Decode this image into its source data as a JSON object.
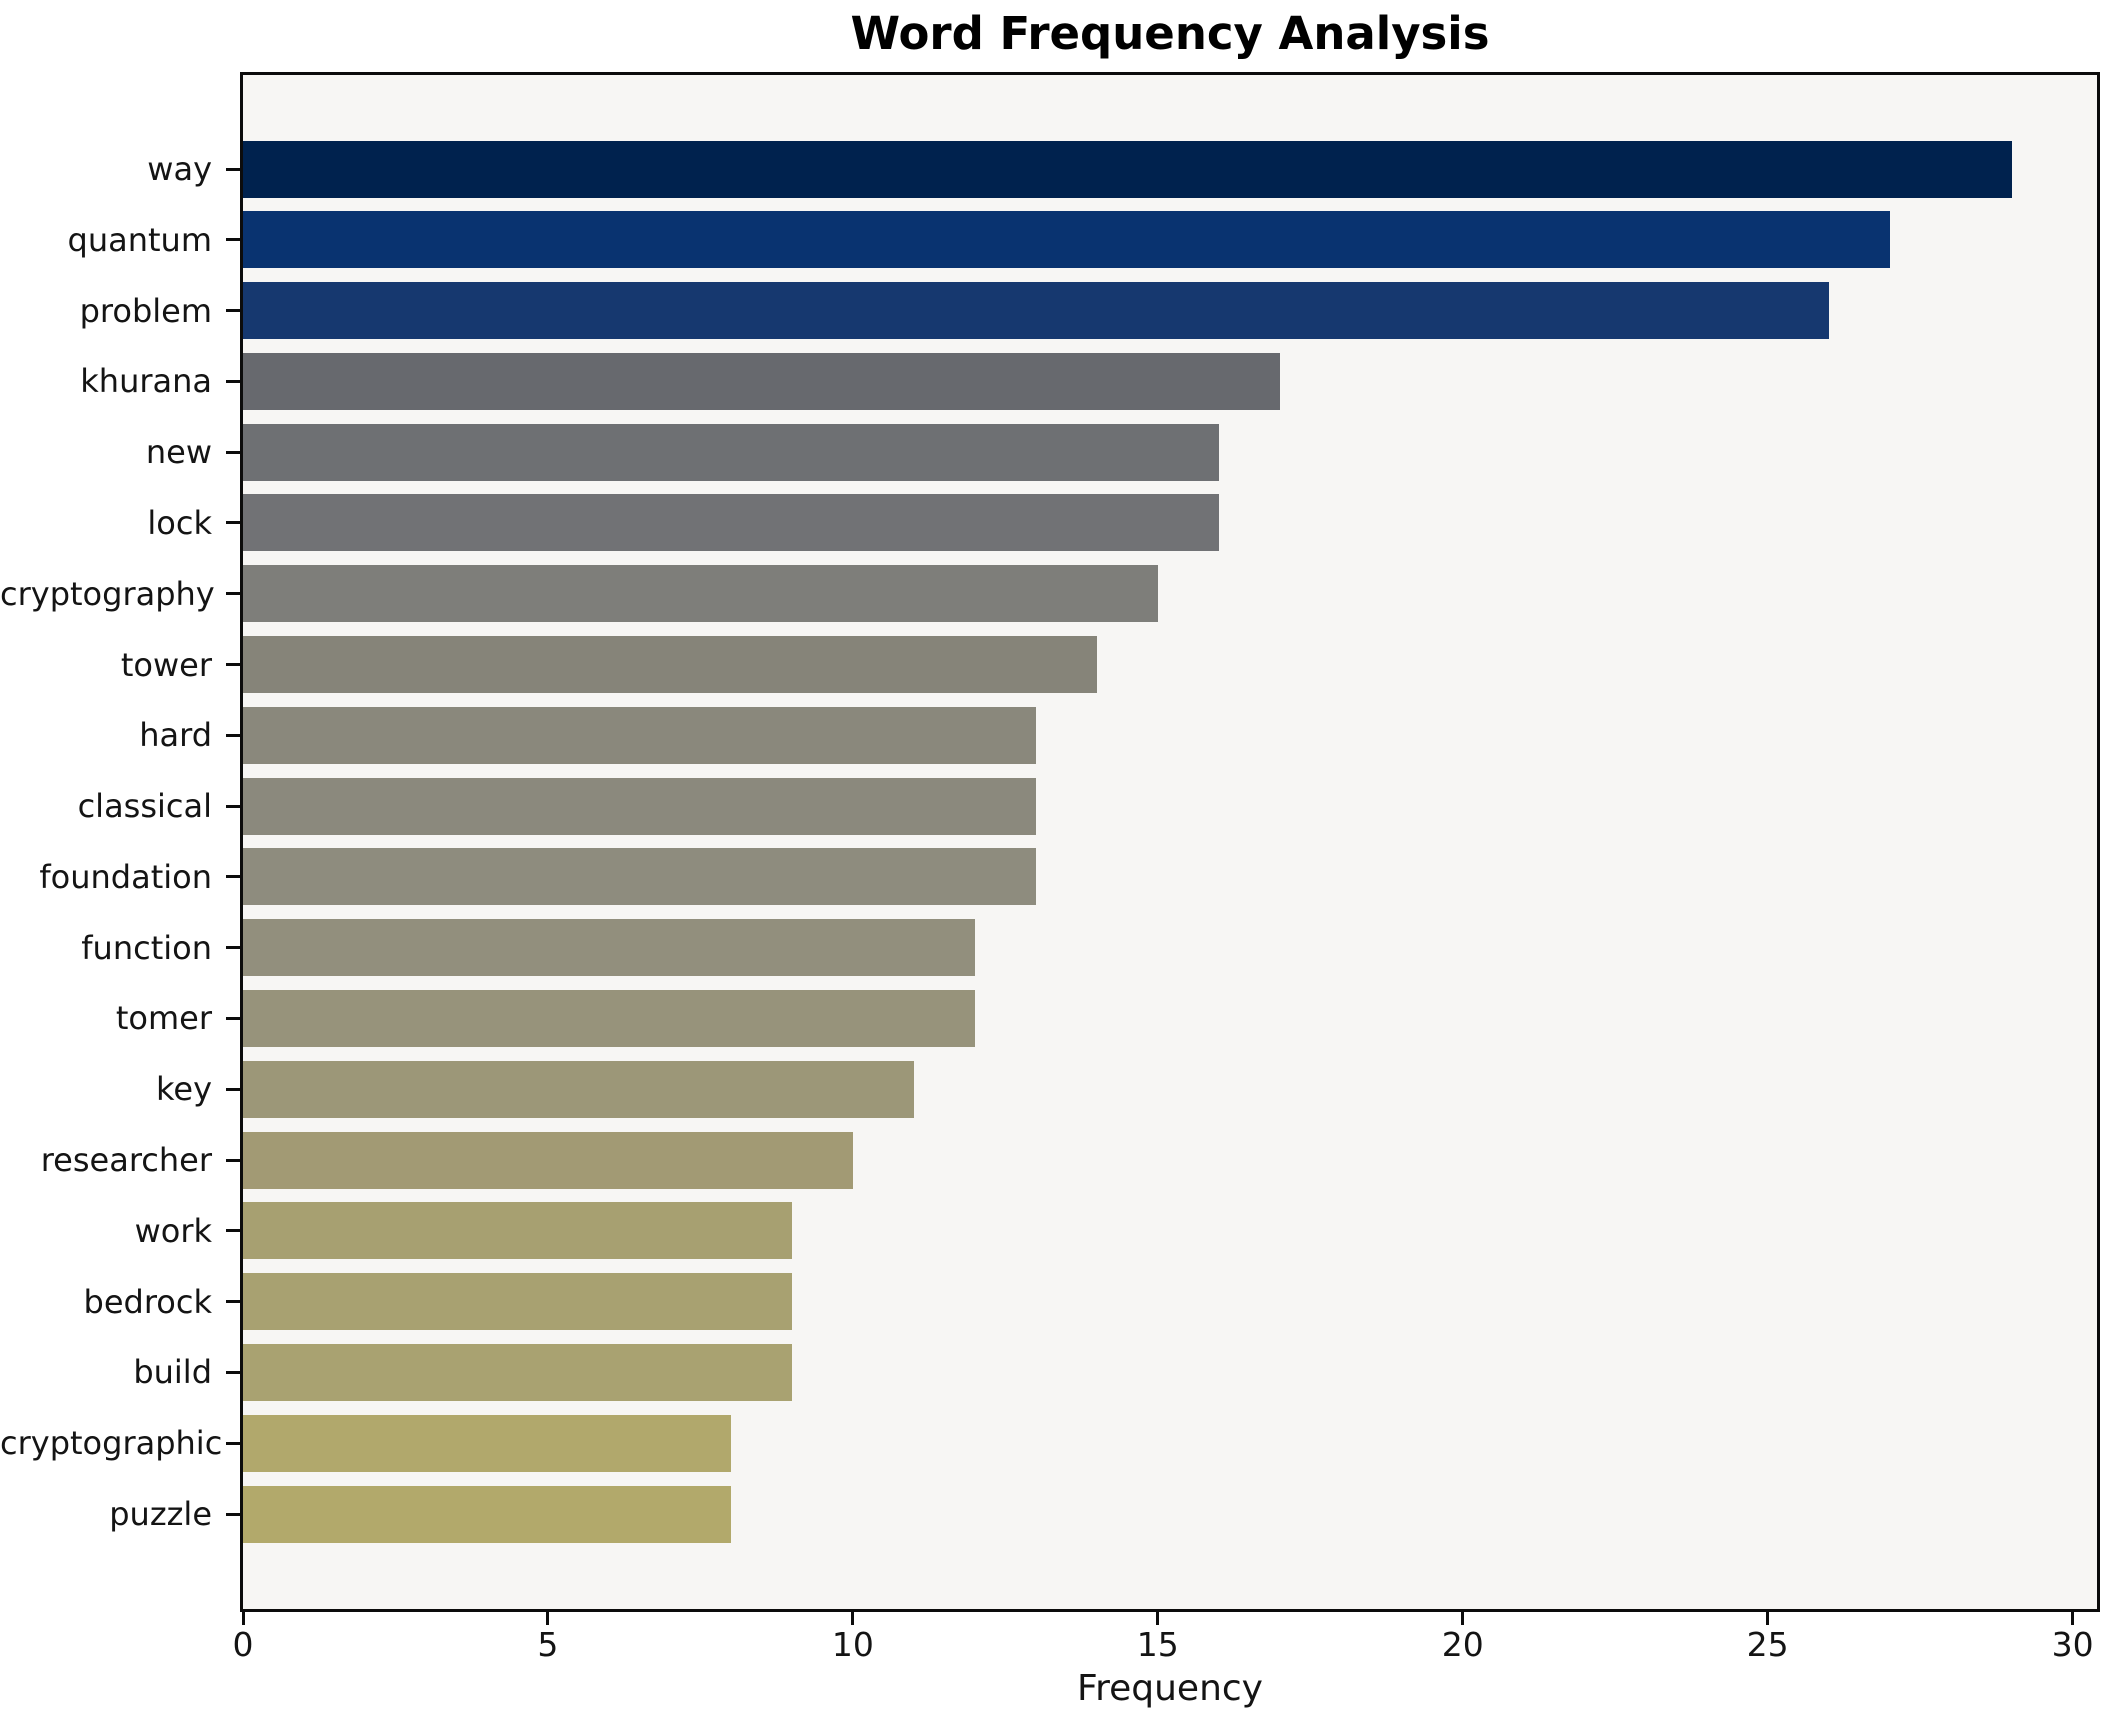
{
  "chart_data": {
    "type": "bar",
    "orientation": "horizontal",
    "title": "Word Frequency Analysis",
    "xlabel": "Frequency",
    "ylabel": "",
    "categories": [
      "way",
      "quantum",
      "problem",
      "khurana",
      "new",
      "lock",
      "cryptography",
      "tower",
      "hard",
      "classical",
      "foundation",
      "function",
      "tomer",
      "key",
      "researcher",
      "work",
      "bedrock",
      "build",
      "cryptographic",
      "puzzle"
    ],
    "values": [
      29,
      27,
      26,
      17,
      16,
      16,
      15,
      14,
      13,
      13,
      13,
      12,
      12,
      11,
      10,
      9,
      9,
      9,
      8,
      8
    ],
    "bar_colors": [
      "#00224e",
      "#093370",
      "#16386f",
      "#67696e",
      "#6e7073",
      "#717275",
      "#7e7e7a",
      "#868479",
      "#8a887c",
      "#8b897d",
      "#8e8c7e",
      "#928f7d",
      "#97937b",
      "#9c9778",
      "#a29a74",
      "#a7a071",
      "#a8a171",
      "#a9a271",
      "#b1a86c",
      "#b2a96b"
    ],
    "xticks": [
      0,
      5,
      10,
      15,
      20,
      25,
      30
    ],
    "xlim": [
      0,
      30.4
    ],
    "grid": false,
    "legend": "none",
    "plot_background": "#f7f6f4",
    "figure_background": "#ffffff",
    "colormap": "cividis"
  }
}
